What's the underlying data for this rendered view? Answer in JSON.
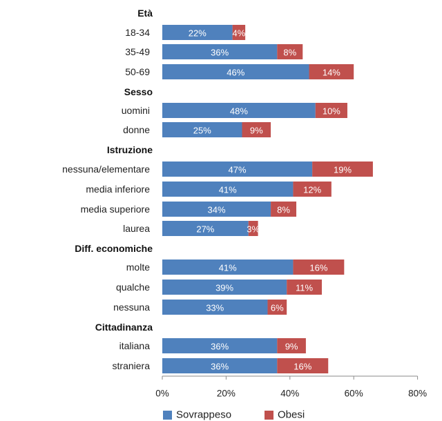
{
  "chart_data": {
    "type": "bar",
    "orientation": "horizontal",
    "stacked": true,
    "groups": [
      {
        "header": "Età",
        "categories": [
          "18-34",
          "35-49",
          "50-69"
        ]
      },
      {
        "header": "Sesso",
        "categories": [
          "uomini",
          "donne"
        ]
      },
      {
        "header": "Istruzione",
        "categories": [
          "nessuna/elementare",
          "media inferiore",
          "media superiore",
          "laurea"
        ]
      },
      {
        "header": "Diff. economiche",
        "categories": [
          "molte",
          "qualche",
          "nessuna"
        ]
      },
      {
        "header": "Cittadinanza",
        "categories": [
          "italiana",
          "straniera"
        ]
      }
    ],
    "series": [
      {
        "name": "Sovrappeso",
        "color": "#4f81bd",
        "values": [
          22,
          36,
          46,
          48,
          25,
          47,
          41,
          34,
          27,
          41,
          39,
          33,
          36,
          36
        ],
        "labels": [
          "22%",
          "36%",
          "46%",
          "48%",
          "25%",
          "47%",
          "41%",
          "34%",
          "27%",
          "41%",
          "39%",
          "33%",
          "36%",
          "36%"
        ]
      },
      {
        "name": "Obesi",
        "color": "#c0504d",
        "values": [
          4,
          8,
          14,
          10,
          9,
          19,
          12,
          8,
          3,
          16,
          11,
          6,
          9,
          16
        ],
        "labels": [
          "4%",
          "8%",
          "14%",
          "10%",
          "9%",
          "19%",
          "12%",
          "8%",
          "3%",
          "16%",
          "11%",
          "6%",
          "9%",
          "16%"
        ]
      }
    ],
    "xlim": [
      0,
      80
    ],
    "xticks": [
      0,
      20,
      40,
      60,
      80
    ],
    "xtick_labels": [
      "0%",
      "20%",
      "40%",
      "60%",
      "80%"
    ],
    "legend_position": "bottom",
    "grid": false
  }
}
